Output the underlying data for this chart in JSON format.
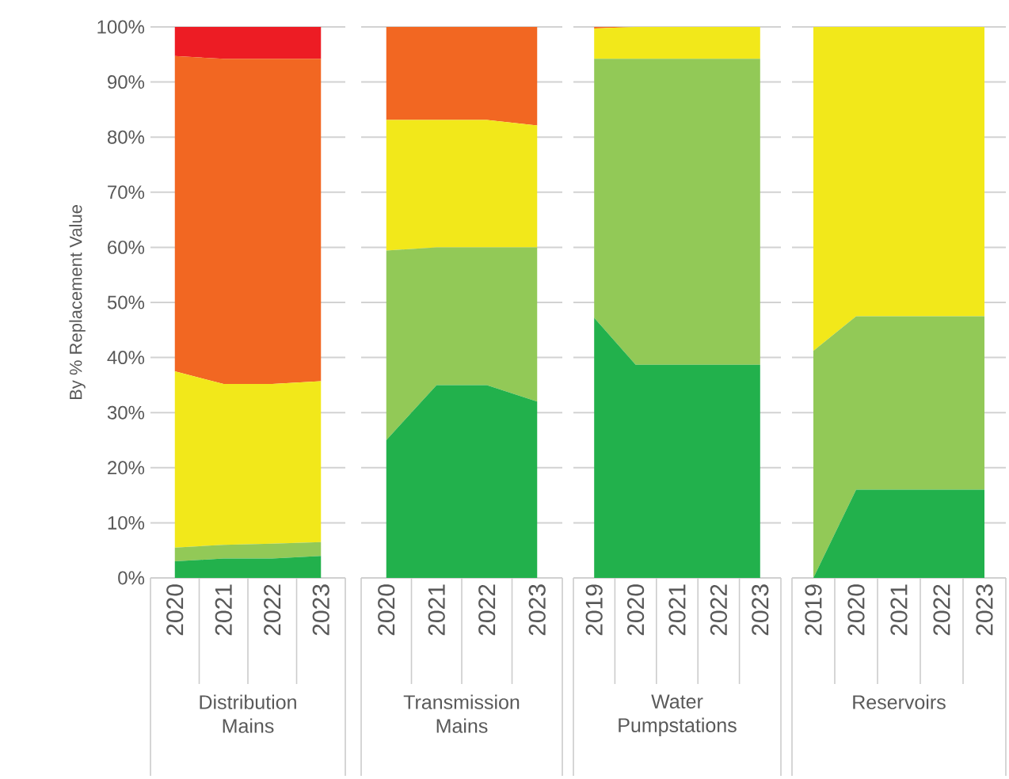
{
  "chart_data": [
    {
      "type": "area",
      "stacked": true,
      "xlabel": "Distribution Mains",
      "ylabel": "By % Replacement Value",
      "categories": [
        "2020",
        "2021",
        "2022",
        "2023"
      ],
      "ylim": [
        0,
        100
      ],
      "yticks": [
        {
          "value": 0,
          "label": "0%"
        },
        {
          "value": 10,
          "label": "10%"
        },
        {
          "value": 20,
          "label": "20%"
        },
        {
          "value": 30,
          "label": "30%"
        },
        {
          "value": 40,
          "label": "40%"
        },
        {
          "value": 50,
          "label": "50%"
        },
        {
          "value": 60,
          "label": "60%"
        },
        {
          "value": 70,
          "label": "70%"
        },
        {
          "value": 80,
          "label": "80%"
        },
        {
          "value": 90,
          "label": "90%"
        },
        {
          "value": 100,
          "label": "100%"
        }
      ],
      "grid": "y",
      "series": [
        {
          "color": "#22b14c",
          "values": [
            3,
            3.5,
            3.5,
            4
          ]
        },
        {
          "color": "#92c957",
          "values": [
            2.5,
            2.5,
            2.7,
            2.5
          ]
        },
        {
          "color": "#f2e81a",
          "values": [
            32,
            29.2,
            29,
            29.2
          ]
        },
        {
          "color": "#f26722",
          "values": [
            57.2,
            59,
            59,
            58.5
          ]
        },
        {
          "color": "#ed1c24",
          "values": [
            5.3,
            5.8,
            5.8,
            5.8
          ]
        }
      ]
    },
    {
      "type": "area",
      "stacked": true,
      "xlabel": "Transmission Mains",
      "categories": [
        "2020",
        "2021",
        "2022",
        "2023"
      ],
      "ylim": [
        0,
        100
      ],
      "yticks": [
        0,
        10,
        20,
        30,
        40,
        50,
        60,
        70,
        80,
        90,
        100
      ],
      "tick_labels": "x",
      "grid": "y",
      "series": [
        {
          "color": "#22b14c",
          "values": [
            25,
            35,
            35,
            32
          ]
        },
        {
          "color": "#92c957",
          "values": [
            34.4,
            25,
            25,
            28
          ]
        },
        {
          "color": "#f2e81a",
          "values": [
            23.7,
            23.1,
            23.1,
            22.1
          ]
        },
        {
          "color": "#f26722",
          "values": [
            16.9,
            16.9,
            16.9,
            17.9
          ]
        }
      ]
    },
    {
      "type": "area",
      "stacked": true,
      "xlabel": "Water Pumpstations",
      "categories": [
        "2019",
        "2020",
        "2021",
        "2022",
        "2023"
      ],
      "ylim": [
        0,
        100
      ],
      "yticks": [
        0,
        10,
        20,
        30,
        40,
        50,
        60,
        70,
        80,
        90,
        100
      ],
      "tick_labels": "x",
      "grid": "y",
      "series": [
        {
          "color": "#22b14c",
          "values": [
            47.2,
            38.7,
            38.7,
            38.7,
            38.7
          ]
        },
        {
          "color": "#92c957",
          "values": [
            47,
            55.5,
            55.5,
            55.5,
            55.5
          ]
        },
        {
          "color": "#f2e81a",
          "values": [
            5.5,
            5.8,
            5.8,
            5.8,
            5.8
          ]
        },
        {
          "color": "#f26722",
          "values": [
            0.3,
            0,
            0,
            0,
            0
          ]
        }
      ]
    },
    {
      "type": "area",
      "stacked": true,
      "xlabel": "Reservoirs",
      "categories": [
        "2019",
        "2020",
        "2021",
        "2022",
        "2023"
      ],
      "ylim": [
        0,
        100
      ],
      "yticks": [
        0,
        10,
        20,
        30,
        40,
        50,
        60,
        70,
        80,
        90,
        100
      ],
      "tick_labels": "x",
      "grid": "y",
      "series": [
        {
          "color": "#22b14c",
          "values": [
            0,
            16,
            16,
            16,
            16
          ]
        },
        {
          "color": "#92c957",
          "values": [
            41.2,
            31.5,
            31.5,
            31.5,
            31.5
          ]
        },
        {
          "color": "#f2e81a",
          "values": [
            58.8,
            52.5,
            52.5,
            52.5,
            52.5
          ]
        }
      ]
    }
  ]
}
